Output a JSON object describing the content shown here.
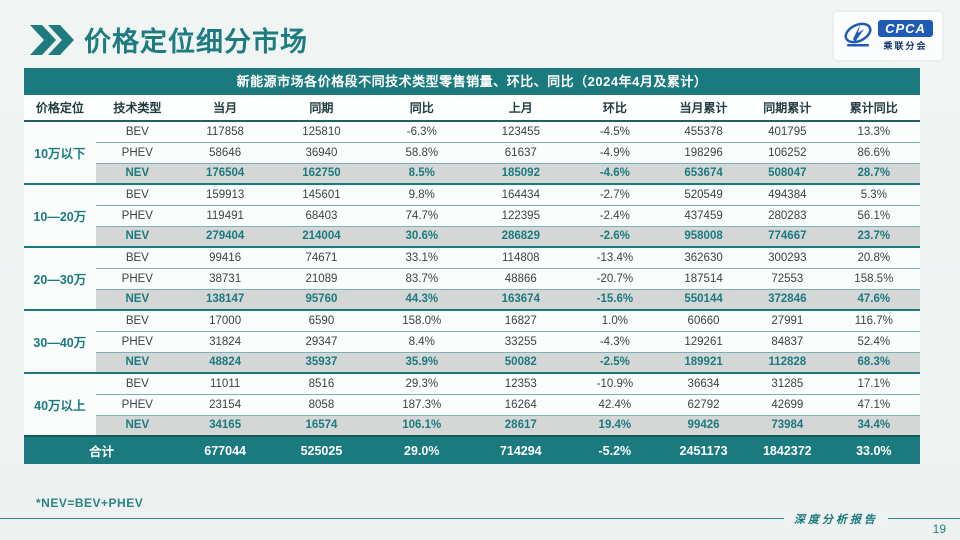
{
  "slide": {
    "title": "价格定位细分市场",
    "footnote": "*NEV=BEV+PHEV",
    "footer_label": "深度分析报告",
    "page_number": "19",
    "logo": {
      "name": "CPCA",
      "sub": "乘联分会"
    }
  },
  "colors": {
    "accent_teal": "#1b7a7e",
    "nev_row_bg": "#d5d7d7",
    "total_row_bg": "#1b7a7e",
    "logo_blue": "#1f5bb5"
  },
  "table": {
    "title": "新能源市场各价格段不同技术类型零售销量、环比、同比（2024年4月及累计）",
    "columns": [
      "价格定位",
      "技术类型",
      "当月",
      "同期",
      "同比",
      "上月",
      "环比",
      "当月累计",
      "同期累计",
      "累计同比"
    ],
    "groups": [
      {
        "label": "10万以下",
        "rows": [
          {
            "type": "BEV",
            "cells": [
              "117858",
              "125810",
              "-6.3%",
              "123455",
              "-4.5%",
              "455378",
              "401795",
              "13.3%"
            ]
          },
          {
            "type": "PHEV",
            "cells": [
              "58646",
              "36940",
              "58.8%",
              "61637",
              "-4.9%",
              "198296",
              "106252",
              "86.6%"
            ]
          },
          {
            "type": "NEV",
            "cells": [
              "176504",
              "162750",
              "8.5%",
              "185092",
              "-4.6%",
              "653674",
              "508047",
              "28.7%"
            ]
          }
        ]
      },
      {
        "label": "10—20万",
        "rows": [
          {
            "type": "BEV",
            "cells": [
              "159913",
              "145601",
              "9.8%",
              "164434",
              "-2.7%",
              "520549",
              "494384",
              "5.3%"
            ]
          },
          {
            "type": "PHEV",
            "cells": [
              "119491",
              "68403",
              "74.7%",
              "122395",
              "-2.4%",
              "437459",
              "280283",
              "56.1%"
            ]
          },
          {
            "type": "NEV",
            "cells": [
              "279404",
              "214004",
              "30.6%",
              "286829",
              "-2.6%",
              "958008",
              "774667",
              "23.7%"
            ]
          }
        ]
      },
      {
        "label": "20—30万",
        "rows": [
          {
            "type": "BEV",
            "cells": [
              "99416",
              "74671",
              "33.1%",
              "114808",
              "-13.4%",
              "362630",
              "300293",
              "20.8%"
            ]
          },
          {
            "type": "PHEV",
            "cells": [
              "38731",
              "21089",
              "83.7%",
              "48866",
              "-20.7%",
              "187514",
              "72553",
              "158.5%"
            ]
          },
          {
            "type": "NEV",
            "cells": [
              "138147",
              "95760",
              "44.3%",
              "163674",
              "-15.6%",
              "550144",
              "372846",
              "47.6%"
            ]
          }
        ]
      },
      {
        "label": "30—40万",
        "rows": [
          {
            "type": "BEV",
            "cells": [
              "17000",
              "6590",
              "158.0%",
              "16827",
              "1.0%",
              "60660",
              "27991",
              "116.7%"
            ]
          },
          {
            "type": "PHEV",
            "cells": [
              "31824",
              "29347",
              "8.4%",
              "33255",
              "-4.3%",
              "129261",
              "84837",
              "52.4%"
            ]
          },
          {
            "type": "NEV",
            "cells": [
              "48824",
              "35937",
              "35.9%",
              "50082",
              "-2.5%",
              "189921",
              "112828",
              "68.3%"
            ]
          }
        ]
      },
      {
        "label": "40万以上",
        "rows": [
          {
            "type": "BEV",
            "cells": [
              "11011",
              "8516",
              "29.3%",
              "12353",
              "-10.9%",
              "36634",
              "31285",
              "17.1%"
            ]
          },
          {
            "type": "PHEV",
            "cells": [
              "23154",
              "8058",
              "187.3%",
              "16264",
              "42.4%",
              "62792",
              "42699",
              "47.1%"
            ]
          },
          {
            "type": "NEV",
            "cells": [
              "34165",
              "16574",
              "106.1%",
              "28617",
              "19.4%",
              "99426",
              "73984",
              "34.4%"
            ]
          }
        ]
      }
    ],
    "total": {
      "label": "合计",
      "cells": [
        "677044",
        "525025",
        "29.0%",
        "714294",
        "-5.2%",
        "2451173",
        "1842372",
        "33.0%"
      ]
    }
  }
}
